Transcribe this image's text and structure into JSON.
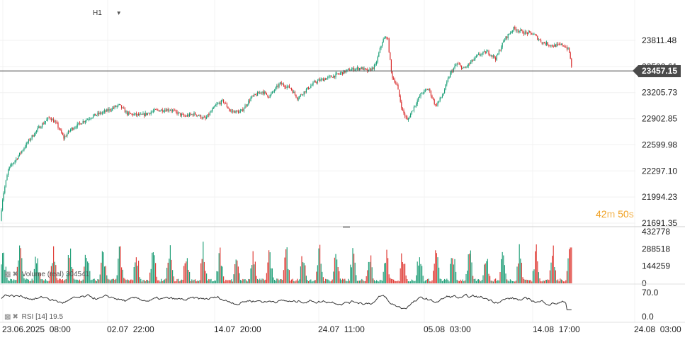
{
  "toolbar": {
    "timeframe": "H1",
    "timeframe_icon": "chevron-down-icon"
  },
  "countdown": {
    "minutes": "42",
    "minutes_unit": "m",
    "seconds": "50",
    "seconds_unit": "s"
  },
  "price_axis": {
    "ticks": [
      "23811.48",
      "23508.61",
      "23205.73",
      "22902.85",
      "22599.98",
      "22297.10",
      "21994.23",
      "21691.35"
    ],
    "current_price": "23457.15",
    "current_price_value": 23457.15
  },
  "volume_pane": {
    "label": "Volume (real)",
    "value": "304541",
    "icons": [
      "bar-chart-icon",
      "close-icon"
    ],
    "ticks": [
      "432778",
      "288518",
      "144259",
      "0"
    ]
  },
  "rsi_pane": {
    "label": "RSI [14]",
    "value": "19.5",
    "icons": [
      "line-chart-icon",
      "close-icon"
    ],
    "ticks": [
      "70.0",
      "0.0"
    ]
  },
  "time_axis": {
    "labels": [
      "23.06.2025  08:00",
      "02.07  22:00",
      "14.07  20:00",
      "24.07  11:00",
      "05.08  03:00",
      "14.08  17:00",
      "24.08  03:00"
    ]
  },
  "colors": {
    "up": "#1a9e77",
    "down": "#d93030",
    "volume_up": "#26a17b",
    "volume_down": "#e0403a",
    "rsi_line": "#333333",
    "price_line": "#555555"
  },
  "chart_data": {
    "type": "candlestick",
    "price_range": [
      21691.35,
      23811.48
    ],
    "last_price": 23457.15,
    "anchors": [
      [
        0,
        21720
      ],
      [
        4,
        22000
      ],
      [
        12,
        22320
      ],
      [
        25,
        22460
      ],
      [
        40,
        22640
      ],
      [
        55,
        22800
      ],
      [
        70,
        22920
      ],
      [
        80,
        22840
      ],
      [
        90,
        22680
      ],
      [
        100,
        22780
      ],
      [
        115,
        22860
      ],
      [
        130,
        22930
      ],
      [
        150,
        22990
      ],
      [
        168,
        23060
      ],
      [
        180,
        22960
      ],
      [
        200,
        22940
      ],
      [
        220,
        23000
      ],
      [
        240,
        23010
      ],
      [
        260,
        22930
      ],
      [
        275,
        22960
      ],
      [
        290,
        22900
      ],
      [
        305,
        23060
      ],
      [
        315,
        23110
      ],
      [
        325,
        22990
      ],
      [
        340,
        22980
      ],
      [
        355,
        23150
      ],
      [
        370,
        23220
      ],
      [
        380,
        23160
      ],
      [
        395,
        23310
      ],
      [
        410,
        23260
      ],
      [
        420,
        23140
      ],
      [
        430,
        23220
      ],
      [
        445,
        23330
      ],
      [
        460,
        23370
      ],
      [
        475,
        23410
      ],
      [
        490,
        23460
      ],
      [
        500,
        23480
      ],
      [
        510,
        23490
      ],
      [
        520,
        23450
      ],
      [
        530,
        23520
      ],
      [
        540,
        23810
      ],
      [
        547,
        23860
      ],
      [
        553,
        23400
      ],
      [
        560,
        23300
      ],
      [
        568,
        23000
      ],
      [
        575,
        22880
      ],
      [
        585,
        23050
      ],
      [
        595,
        23200
      ],
      [
        605,
        23250
      ],
      [
        615,
        23050
      ],
      [
        625,
        23180
      ],
      [
        635,
        23420
      ],
      [
        645,
        23540
      ],
      [
        655,
        23480
      ],
      [
        665,
        23560
      ],
      [
        675,
        23640
      ],
      [
        688,
        23680
      ],
      [
        700,
        23600
      ],
      [
        712,
        23820
      ],
      [
        725,
        23950
      ],
      [
        740,
        23900
      ],
      [
        752,
        23890
      ],
      [
        765,
        23790
      ],
      [
        780,
        23750
      ],
      [
        795,
        23760
      ],
      [
        803,
        23700
      ],
      [
        808,
        23457
      ]
    ],
    "volume_range": [
      0,
      432778
    ],
    "rsi_range": [
      0,
      70
    ]
  }
}
